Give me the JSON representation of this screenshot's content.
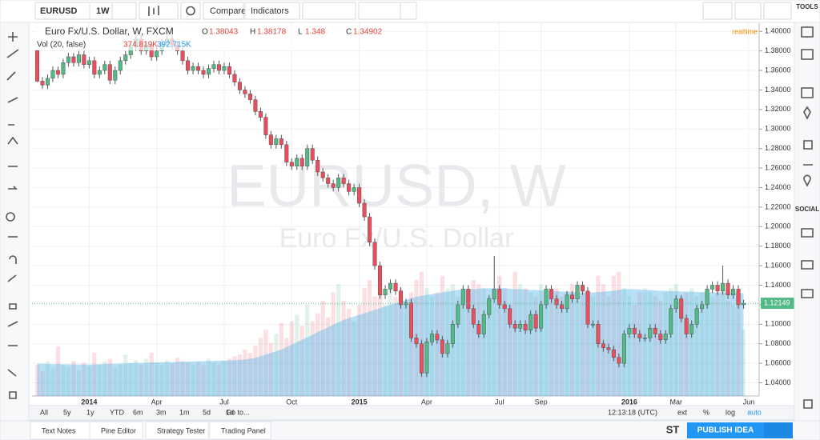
{
  "ui": {
    "symbol": "EURUSD",
    "interval": "1W",
    "compare": "Compare",
    "indicators": "Indicators",
    "tools": "TOOLS",
    "social": "SOCIAL",
    "ranges": [
      "All",
      "5y",
      "1y",
      "YTD",
      "6m",
      "3m",
      "1m",
      "5d",
      "1d",
      "Go to..."
    ],
    "clock": "12:13:18 (UTC)",
    "scale_options": [
      "ext",
      "%",
      "log",
      "auto"
    ],
    "tabs": [
      "Text Notes",
      "Pine Editor",
      "Strategy Tester",
      "Trading Panel"
    ],
    "st": "ST",
    "publish": "PUBLISH IDEA"
  },
  "chart_data": {
    "type": "candlestick",
    "title": "Euro Fx/U.S. Dollar, W, FXCM",
    "legend_keys": [
      "O",
      "H",
      "L",
      "C"
    ],
    "realtime": "realtime",
    "vol_title": "Vol (20, false)",
    "vol_legend": [
      "374.819K",
      "392.715K"
    ],
    "watermark": "EURUSD, W",
    "watermark_sub": "Euro Fx/U.S. Dollar",
    "up_color": "#53b987",
    "down_color": "#eb4d5c",
    "ma_color": "#5fb8e8",
    "grid": true,
    "xlim": [
      -1,
      139
    ],
    "ylim": [
      1.0265,
      1.4084
    ],
    "vlim": [
      0,
      4500
    ],
    "yticks": [
      {
        "value": 1.04,
        "label": "1.04000"
      },
      {
        "value": 1.06,
        "label": "1.06000"
      },
      {
        "value": 1.08,
        "label": "1.08000"
      },
      {
        "value": 1.1,
        "label": "1.10000"
      },
      {
        "value": 1.12,
        "label": "1.12000"
      },
      {
        "value": 1.14,
        "label": "1.14000"
      },
      {
        "value": 1.16,
        "label": "1.16000"
      },
      {
        "value": 1.18,
        "label": "1.18000"
      },
      {
        "value": 1.2,
        "label": "1.20000"
      },
      {
        "value": 1.22,
        "label": "1.22000"
      },
      {
        "value": 1.24,
        "label": "1.24000"
      },
      {
        "value": 1.26,
        "label": "1.26000"
      },
      {
        "value": 1.28,
        "label": "1.28000"
      },
      {
        "value": 1.3,
        "label": "1.30000"
      },
      {
        "value": 1.32,
        "label": "1.32000"
      },
      {
        "value": 1.34,
        "label": "1.34000"
      },
      {
        "value": 1.36,
        "label": "1.36000"
      },
      {
        "value": 1.38,
        "label": "1.38000"
      },
      {
        "value": 1.4,
        "label": "1.40000"
      }
    ],
    "xticks": [
      {
        "value": 10,
        "label": "2014"
      },
      {
        "value": 23,
        "label": "Apr"
      },
      {
        "value": 36,
        "label": "Jul"
      },
      {
        "value": 49,
        "label": "Oct"
      },
      {
        "value": 62,
        "label": "2015"
      },
      {
        "value": 75,
        "label": "Apr"
      },
      {
        "value": 89,
        "label": "Jul"
      },
      {
        "value": 97,
        "label": "Sep"
      },
      {
        "value": 114,
        "label": "2016"
      },
      {
        "value": 123,
        "label": "Mar"
      },
      {
        "value": 137,
        "label": "Jun"
      }
    ],
    "last_price": {
      "value": 1.12149,
      "label": "1.12149"
    },
    "candles": [
      [
        1.38043,
        1.38178,
        1.348,
        1.34902
      ],
      [
        1.349,
        1.353,
        1.341,
        1.345
      ],
      [
        1.345,
        1.356,
        1.341,
        1.352
      ],
      [
        1.352,
        1.364,
        1.348,
        1.36
      ],
      [
        1.36,
        1.364,
        1.352,
        1.356
      ],
      [
        1.356,
        1.372,
        1.352,
        1.368
      ],
      [
        1.368,
        1.378,
        1.364,
        1.374
      ],
      [
        1.374,
        1.378,
        1.364,
        1.368
      ],
      [
        1.368,
        1.38,
        1.364,
        1.376
      ],
      [
        1.376,
        1.38,
        1.362,
        1.366
      ],
      [
        1.366,
        1.374,
        1.362,
        1.37
      ],
      [
        1.37,
        1.374,
        1.352,
        1.356
      ],
      [
        1.356,
        1.364,
        1.352,
        1.36
      ],
      [
        1.36,
        1.37,
        1.356,
        1.366
      ],
      [
        1.366,
        1.37,
        1.346,
        1.35
      ],
      [
        1.35,
        1.364,
        1.346,
        1.36
      ],
      [
        1.36,
        1.374,
        1.356,
        1.37
      ],
      [
        1.37,
        1.38,
        1.366,
        1.376
      ],
      [
        1.376,
        1.388,
        1.372,
        1.384
      ],
      [
        1.384,
        1.396,
        1.38,
        1.392
      ],
      [
        1.392,
        1.396,
        1.376,
        1.38
      ],
      [
        1.38,
        1.39,
        1.376,
        1.386
      ],
      [
        1.386,
        1.39,
        1.37,
        1.374
      ],
      [
        1.374,
        1.384,
        1.37,
        1.38
      ],
      [
        1.38,
        1.392,
        1.376,
        1.388
      ],
      [
        1.388,
        1.396,
        1.384,
        1.392
      ],
      [
        1.392,
        1.396,
        1.382,
        1.386
      ],
      [
        1.386,
        1.39,
        1.376,
        1.38
      ],
      [
        1.38,
        1.384,
        1.366,
        1.37
      ],
      [
        1.37,
        1.374,
        1.356,
        1.36
      ],
      [
        1.36,
        1.368,
        1.356,
        1.364
      ],
      [
        1.364,
        1.368,
        1.356,
        1.36
      ],
      [
        1.36,
        1.364,
        1.352,
        1.356
      ],
      [
        1.356,
        1.366,
        1.352,
        1.362
      ],
      [
        1.362,
        1.37,
        1.358,
        1.366
      ],
      [
        1.366,
        1.37,
        1.356,
        1.36
      ],
      [
        1.36,
        1.368,
        1.356,
        1.364
      ],
      [
        1.364,
        1.368,
        1.352,
        1.356
      ],
      [
        1.356,
        1.36,
        1.344,
        1.348
      ],
      [
        1.348,
        1.352,
        1.336,
        1.34
      ],
      [
        1.34,
        1.344,
        1.332,
        1.336
      ],
      [
        1.336,
        1.34,
        1.326,
        1.33
      ],
      [
        1.33,
        1.334,
        1.314,
        1.318
      ],
      [
        1.318,
        1.322,
        1.308,
        1.312
      ],
      [
        1.312,
        1.316,
        1.29,
        1.294
      ],
      [
        1.294,
        1.298,
        1.28,
        1.284
      ],
      [
        1.284,
        1.294,
        1.28,
        1.29
      ],
      [
        1.29,
        1.294,
        1.28,
        1.284
      ],
      [
        1.284,
        1.288,
        1.262,
        1.266
      ],
      [
        1.266,
        1.27,
        1.258,
        1.262
      ],
      [
        1.262,
        1.274,
        1.258,
        1.27
      ],
      [
        1.27,
        1.274,
        1.258,
        1.262
      ],
      [
        1.262,
        1.284,
        1.258,
        1.28
      ],
      [
        1.28,
        1.284,
        1.264,
        1.268
      ],
      [
        1.268,
        1.272,
        1.252,
        1.256
      ],
      [
        1.256,
        1.26,
        1.246,
        1.25
      ],
      [
        1.25,
        1.254,
        1.24,
        1.244
      ],
      [
        1.244,
        1.248,
        1.236,
        1.24
      ],
      [
        1.24,
        1.254,
        1.236,
        1.25
      ],
      [
        1.25,
        1.254,
        1.24,
        1.244
      ],
      [
        1.244,
        1.248,
        1.232,
        1.236
      ],
      [
        1.236,
        1.244,
        1.232,
        1.24
      ],
      [
        1.24,
        1.244,
        1.22,
        1.224
      ],
      [
        1.224,
        1.228,
        1.206,
        1.21
      ],
      [
        1.21,
        1.214,
        1.18,
        1.184
      ],
      [
        1.184,
        1.188,
        1.156,
        1.16
      ],
      [
        1.16,
        1.164,
        1.126,
        1.13
      ],
      [
        1.13,
        1.14,
        1.126,
        1.136
      ],
      [
        1.136,
        1.146,
        1.132,
        1.142
      ],
      [
        1.142,
        1.146,
        1.13,
        1.134
      ],
      [
        1.134,
        1.138,
        1.116,
        1.12
      ],
      [
        1.12,
        1.126,
        1.116,
        1.122
      ],
      [
        1.122,
        1.126,
        1.082,
        1.086
      ],
      [
        1.086,
        1.09,
        1.076,
        1.08
      ],
      [
        1.08,
        1.084,
        1.046,
        1.05
      ],
      [
        1.05,
        1.086,
        1.046,
        1.082
      ],
      [
        1.082,
        1.094,
        1.078,
        1.09
      ],
      [
        1.09,
        1.094,
        1.08,
        1.084
      ],
      [
        1.084,
        1.088,
        1.066,
        1.07
      ],
      [
        1.07,
        1.084,
        1.066,
        1.08
      ],
      [
        1.08,
        1.104,
        1.076,
        1.1
      ],
      [
        1.1,
        1.124,
        1.096,
        1.12
      ],
      [
        1.12,
        1.14,
        1.116,
        1.136
      ],
      [
        1.136,
        1.14,
        1.112,
        1.116
      ],
      [
        1.116,
        1.12,
        1.096,
        1.1
      ],
      [
        1.1,
        1.104,
        1.086,
        1.09
      ],
      [
        1.09,
        1.114,
        1.086,
        1.11
      ],
      [
        1.11,
        1.13,
        1.106,
        1.126
      ],
      [
        1.126,
        1.17,
        1.122,
        1.136
      ],
      [
        1.136,
        1.14,
        1.116,
        1.12
      ],
      [
        1.12,
        1.124,
        1.112,
        1.116
      ],
      [
        1.116,
        1.12,
        1.096,
        1.1
      ],
      [
        1.1,
        1.104,
        1.092,
        1.096
      ],
      [
        1.096,
        1.104,
        1.092,
        1.1
      ],
      [
        1.1,
        1.104,
        1.09,
        1.094
      ],
      [
        1.094,
        1.114,
        1.09,
        1.11
      ],
      [
        1.11,
        1.114,
        1.092,
        1.096
      ],
      [
        1.096,
        1.124,
        1.092,
        1.12
      ],
      [
        1.12,
        1.14,
        1.116,
        1.136
      ],
      [
        1.136,
        1.14,
        1.122,
        1.126
      ],
      [
        1.126,
        1.13,
        1.116,
        1.12
      ],
      [
        1.12,
        1.124,
        1.112,
        1.116
      ],
      [
        1.116,
        1.134,
        1.112,
        1.13
      ],
      [
        1.13,
        1.134,
        1.122,
        1.126
      ],
      [
        1.126,
        1.144,
        1.122,
        1.14
      ],
      [
        1.14,
        1.144,
        1.13,
        1.134
      ],
      [
        1.134,
        1.138,
        1.096,
        1.1
      ],
      [
        1.1,
        1.104,
        1.096,
        1.1
      ],
      [
        1.1,
        1.104,
        1.076,
        1.08
      ],
      [
        1.08,
        1.084,
        1.072,
        1.076
      ],
      [
        1.076,
        1.08,
        1.07,
        1.074
      ],
      [
        1.074,
        1.078,
        1.062,
        1.066
      ],
      [
        1.066,
        1.07,
        1.056,
        1.06
      ],
      [
        1.06,
        1.094,
        1.056,
        1.09
      ],
      [
        1.09,
        1.1,
        1.086,
        1.096
      ],
      [
        1.096,
        1.1,
        1.086,
        1.09
      ],
      [
        1.09,
        1.094,
        1.082,
        1.086
      ],
      [
        1.086,
        1.09,
        1.082,
        1.086
      ],
      [
        1.086,
        1.1,
        1.082,
        1.096
      ],
      [
        1.096,
        1.1,
        1.086,
        1.09
      ],
      [
        1.09,
        1.094,
        1.08,
        1.084
      ],
      [
        1.084,
        1.094,
        1.08,
        1.09
      ],
      [
        1.09,
        1.12,
        1.086,
        1.116
      ],
      [
        1.116,
        1.13,
        1.112,
        1.126
      ],
      [
        1.126,
        1.13,
        1.102,
        1.106
      ],
      [
        1.106,
        1.11,
        1.086,
        1.09
      ],
      [
        1.09,
        1.104,
        1.086,
        1.1
      ],
      [
        1.1,
        1.12,
        1.096,
        1.116
      ],
      [
        1.116,
        1.124,
        1.112,
        1.12
      ],
      [
        1.12,
        1.14,
        1.116,
        1.136
      ],
      [
        1.136,
        1.144,
        1.132,
        1.14
      ],
      [
        1.14,
        1.144,
        1.13,
        1.134
      ],
      [
        1.134,
        1.16,
        1.13,
        1.142
      ],
      [
        1.142,
        1.146,
        1.126,
        1.13
      ],
      [
        1.13,
        1.14,
        1.126,
        1.136
      ],
      [
        1.136,
        1.14,
        1.116,
        1.12
      ],
      [
        1.12,
        1.125,
        1.116,
        1.12149
      ]
    ],
    "volume": [
      374.819,
      300,
      420,
      330,
      600,
      380,
      350,
      420,
      310,
      400,
      360,
      520,
      380,
      420,
      450,
      350,
      380,
      500,
      400,
      430,
      380,
      450,
      520,
      400,
      380,
      430,
      390,
      460,
      420,
      400,
      380,
      410,
      370,
      450,
      400,
      380,
      420,
      450,
      480,
      500,
      560,
      520,
      610,
      700,
      800,
      640,
      750,
      880,
      700,
      900,
      980,
      850,
      1100,
      900,
      1000,
      1150,
      950,
      1250,
      1350,
      1150,
      1050,
      900,
      1100,
      1300,
      1400,
      1200,
      1350,
      1100,
      1300,
      1200,
      1300,
      1150,
      1250,
      1400,
      1500,
      1300,
      1200,
      1250,
      1450,
      1300,
      1350,
      1200,
      1300,
      1250,
      1400,
      1350,
      1300,
      1200,
      1250,
      1450,
      1300,
      1100,
      1500,
      1350,
      1300,
      1250,
      1200,
      1350,
      1300,
      1250,
      1300,
      1200,
      1250,
      1350,
      1150,
      1300,
      1250,
      1200,
      1450,
      1350,
      1200,
      1450,
      1500,
      1300,
      1200,
      1100,
      1250,
      1300,
      1250,
      1200,
      1150,
      1250,
      1300,
      1350,
      1200,
      1250,
      1300,
      1200,
      1250,
      1150,
      1200,
      1250,
      1300,
      1150,
      1100,
      1200,
      800
    ],
    "volume_ma": [
      392.715,
      390,
      388,
      385,
      385,
      384,
      383,
      382,
      381,
      380,
      380,
      382,
      384,
      386,
      388,
      390,
      392,
      394,
      396,
      398,
      400,
      402,
      404,
      406,
      408,
      410,
      410,
      412,
      414,
      416,
      418,
      420,
      420,
      422,
      424,
      426,
      428,
      430,
      432,
      436,
      440,
      450,
      460,
      480,
      500,
      520,
      540,
      560,
      590,
      620,
      650,
      680,
      710,
      740,
      770,
      800,
      830,
      860,
      890,
      920,
      940,
      960,
      980,
      1000,
      1020,
      1040,
      1060,
      1080,
      1100,
      1120,
      1140,
      1160,
      1180,
      1200,
      1210,
      1220,
      1230,
      1240,
      1250,
      1260,
      1270,
      1280,
      1285,
      1290,
      1290,
      1295,
      1300,
      1300,
      1300,
      1300,
      1300,
      1295,
      1290,
      1290,
      1285,
      1280,
      1280,
      1275,
      1270,
      1270,
      1265,
      1260,
      1260,
      1255,
      1250,
      1250,
      1250,
      1250,
      1255,
      1260,
      1265,
      1270,
      1280,
      1290,
      1290,
      1290,
      1285,
      1280,
      1280,
      1275,
      1270,
      1270,
      1265,
      1265,
      1260,
      1260,
      1260,
      1255,
      1255,
      1255,
      1250,
      1250,
      1250,
      1250,
      1245,
      1245,
      1240
    ]
  }
}
